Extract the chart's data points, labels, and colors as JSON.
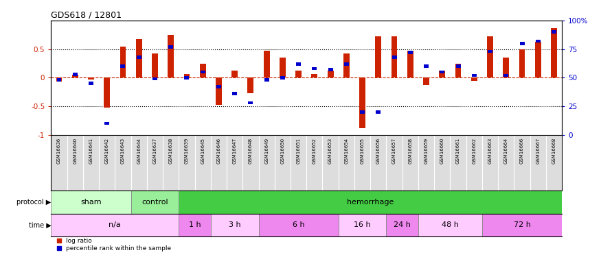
{
  "title": "GDS618 / 12801",
  "samples": [
    "GSM16636",
    "GSM16640",
    "GSM16641",
    "GSM16642",
    "GSM16643",
    "GSM16644",
    "GSM16637",
    "GSM16638",
    "GSM16639",
    "GSM16645",
    "GSM16646",
    "GSM16647",
    "GSM16648",
    "GSM16649",
    "GSM16650",
    "GSM16651",
    "GSM16652",
    "GSM16653",
    "GSM16654",
    "GSM16655",
    "GSM16656",
    "GSM16657",
    "GSM16658",
    "GSM16659",
    "GSM16660",
    "GSM16661",
    "GSM16662",
    "GSM16663",
    "GSM16664",
    "GSM16666",
    "GSM16667",
    "GSM16668"
  ],
  "log_ratio": [
    -0.07,
    0.05,
    -0.03,
    -0.52,
    0.55,
    0.68,
    0.42,
    0.75,
    0.07,
    0.25,
    -0.48,
    0.12,
    -0.27,
    0.47,
    0.35,
    0.13,
    0.07,
    0.13,
    0.42,
    -0.88,
    0.73,
    0.73,
    0.47,
    -0.13,
    0.13,
    0.25,
    -0.05,
    0.73,
    0.35,
    0.5,
    0.63,
    0.87
  ],
  "percentile": [
    48,
    53,
    45,
    10,
    60,
    68,
    49,
    77,
    50,
    55,
    42,
    36,
    28,
    48,
    50,
    62,
    58,
    57,
    62,
    20,
    20,
    68,
    72,
    60,
    55,
    60,
    52,
    73,
    52,
    80,
    82,
    90
  ],
  "protocol_groups": [
    {
      "label": "sham",
      "start": 0,
      "end": 5,
      "color": "#ccffcc"
    },
    {
      "label": "control",
      "start": 5,
      "end": 8,
      "color": "#99ee99"
    },
    {
      "label": "hemorrhage",
      "start": 8,
      "end": 32,
      "color": "#44cc44"
    }
  ],
  "time_groups": [
    {
      "label": "n/a",
      "start": 0,
      "end": 8,
      "color": "#ffccff"
    },
    {
      "label": "1 h",
      "start": 8,
      "end": 10,
      "color": "#ee88ee"
    },
    {
      "label": "3 h",
      "start": 10,
      "end": 13,
      "color": "#ffccff"
    },
    {
      "label": "6 h",
      "start": 13,
      "end": 18,
      "color": "#ee88ee"
    },
    {
      "label": "16 h",
      "start": 18,
      "end": 21,
      "color": "#ffccff"
    },
    {
      "label": "24 h",
      "start": 21,
      "end": 23,
      "color": "#ee88ee"
    },
    {
      "label": "48 h",
      "start": 23,
      "end": 27,
      "color": "#ffccff"
    },
    {
      "label": "72 h",
      "start": 27,
      "end": 32,
      "color": "#ee88ee"
    }
  ],
  "bar_color": "#cc2200",
  "dot_color": "#0000cc",
  "y_min": -1.0,
  "y_max": 1.0,
  "sample_bg_color": "#dddddd",
  "background_color": "#ffffff"
}
